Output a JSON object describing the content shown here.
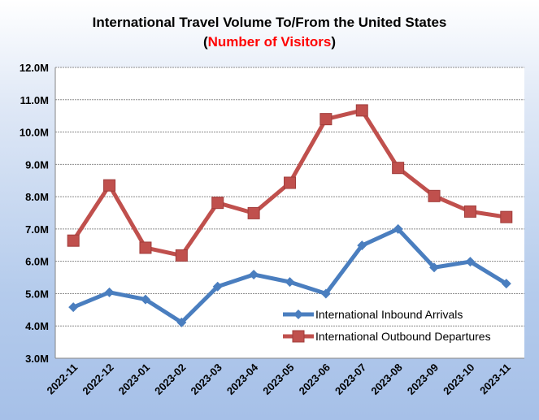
{
  "chart_data": {
    "type": "line",
    "title": "International Travel Volume To/From the United States",
    "subtitle_prefix": "(",
    "subtitle": "Number of Visitors",
    "subtitle_suffix": ")",
    "xlabel": "",
    "ylabel": "",
    "ylim": [
      3.0,
      12.0
    ],
    "yticks": [
      "3.0M",
      "4.0M",
      "5.0M",
      "6.0M",
      "7.0M",
      "8.0M",
      "9.0M",
      "10.0M",
      "11.0M",
      "12.0M"
    ],
    "grid": true,
    "legend_position": "bottom-right",
    "categories": [
      "2022-11",
      "2022-12",
      "2023-01",
      "2023-02",
      "2023-03",
      "2023-04",
      "2023-05",
      "2023-06",
      "2023-07",
      "2023-08",
      "2023-09",
      "2023-10",
      "2023-11"
    ],
    "series": [
      {
        "name": "International Inbound Arrivals",
        "color": "#4a7ebf",
        "marker": "diamond",
        "values": [
          4.58,
          5.04,
          4.82,
          4.11,
          5.22,
          5.59,
          5.36,
          5.0,
          6.49,
          7.0,
          5.81,
          5.99,
          5.31
        ]
      },
      {
        "name": "International Outbound Departures",
        "color": "#c0504d",
        "marker": "square",
        "values": [
          6.64,
          8.35,
          6.42,
          6.18,
          7.81,
          7.49,
          8.43,
          10.4,
          10.67,
          8.89,
          8.02,
          7.54,
          7.37
        ]
      }
    ]
  }
}
